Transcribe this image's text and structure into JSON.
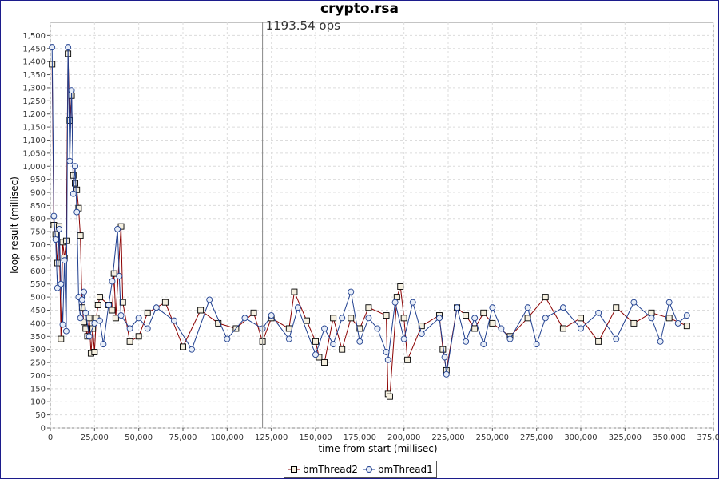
{
  "chart_data": {
    "type": "line",
    "title": "crypto.rsa",
    "annotation": "1193.54 ops",
    "annotation_x": 120000,
    "xlabel": "time from start (millisec)",
    "ylabel": "loop result (millisec)",
    "xlim": [
      0,
      375000
    ],
    "ylim": [
      0,
      1550
    ],
    "x_ticks": [
      "0",
      "25,000",
      "50,000",
      "75,000",
      "100,000",
      "125,000",
      "150,000",
      "175,000",
      "200,000",
      "225,000",
      "250,000",
      "275,000",
      "300,000",
      "325,000",
      "350,000",
      "375,000"
    ],
    "y_ticks": [
      "0",
      "50",
      "100",
      "150",
      "200",
      "250",
      "300",
      "350",
      "400",
      "450",
      "500",
      "550",
      "600",
      "650",
      "700",
      "750",
      "800",
      "850",
      "900",
      "950",
      "1,000",
      "1,050",
      "1,100",
      "1,150",
      "1,200",
      "1,250",
      "1,300",
      "1,350",
      "1,400",
      "1,450",
      "1,500"
    ],
    "grid": true,
    "legend_position": "bottom",
    "series": [
      {
        "name": "bmThread2",
        "marker": "square",
        "color": "#8b0000",
        "points": [
          [
            1000,
            1390
          ],
          [
            2000,
            775
          ],
          [
            3000,
            740
          ],
          [
            4000,
            630
          ],
          [
            5000,
            770
          ],
          [
            6000,
            340
          ],
          [
            7000,
            710
          ],
          [
            8000,
            650
          ],
          [
            9000,
            715
          ],
          [
            10000,
            1430
          ],
          [
            11000,
            1175
          ],
          [
            12000,
            1270
          ],
          [
            13000,
            965
          ],
          [
            14000,
            935
          ],
          [
            15000,
            910
          ],
          [
            16000,
            840
          ],
          [
            17000,
            735
          ],
          [
            18000,
            460
          ],
          [
            19000,
            405
          ],
          [
            20000,
            380
          ],
          [
            21000,
            350
          ],
          [
            22000,
            420
          ],
          [
            23000,
            285
          ],
          [
            24000,
            380
          ],
          [
            25000,
            290
          ],
          [
            26000,
            420
          ],
          [
            27000,
            470
          ],
          [
            28000,
            500
          ],
          [
            33000,
            470
          ],
          [
            35000,
            450
          ],
          [
            36000,
            590
          ],
          [
            37000,
            420
          ],
          [
            40000,
            770
          ],
          [
            41000,
            480
          ],
          [
            45000,
            330
          ],
          [
            50000,
            350
          ],
          [
            55000,
            440
          ],
          [
            65000,
            480
          ],
          [
            75000,
            310
          ],
          [
            85000,
            450
          ],
          [
            95000,
            400
          ],
          [
            105000,
            380
          ],
          [
            115000,
            440
          ],
          [
            120000,
            330
          ],
          [
            125000,
            420
          ],
          [
            135000,
            380
          ],
          [
            138000,
            520
          ],
          [
            145000,
            410
          ],
          [
            150000,
            330
          ],
          [
            152000,
            270
          ],
          [
            155000,
            250
          ],
          [
            160000,
            420
          ],
          [
            165000,
            300
          ],
          [
            170000,
            420
          ],
          [
            175000,
            380
          ],
          [
            180000,
            460
          ],
          [
            190000,
            430
          ],
          [
            191000,
            130
          ],
          [
            192000,
            120
          ],
          [
            196000,
            500
          ],
          [
            198000,
            540
          ],
          [
            200000,
            420
          ],
          [
            202000,
            260
          ],
          [
            210000,
            390
          ],
          [
            220000,
            430
          ],
          [
            222000,
            300
          ],
          [
            224000,
            220
          ],
          [
            230000,
            460
          ],
          [
            235000,
            430
          ],
          [
            240000,
            380
          ],
          [
            245000,
            440
          ],
          [
            250000,
            400
          ],
          [
            260000,
            350
          ],
          [
            270000,
            420
          ],
          [
            280000,
            500
          ],
          [
            290000,
            380
          ],
          [
            300000,
            420
          ],
          [
            310000,
            330
          ],
          [
            320000,
            460
          ],
          [
            330000,
            400
          ],
          [
            340000,
            440
          ],
          [
            350000,
            420
          ],
          [
            360000,
            390
          ]
        ]
      },
      {
        "name": "bmThread1",
        "marker": "circle",
        "color": "#1f3f8f",
        "points": [
          [
            1000,
            1455
          ],
          [
            2000,
            810
          ],
          [
            3000,
            720
          ],
          [
            4000,
            535
          ],
          [
            5000,
            760
          ],
          [
            6000,
            550
          ],
          [
            7000,
            395
          ],
          [
            8000,
            640
          ],
          [
            9000,
            370
          ],
          [
            10000,
            1455
          ],
          [
            11000,
            1020
          ],
          [
            12000,
            1290
          ],
          [
            13000,
            895
          ],
          [
            14000,
            1000
          ],
          [
            15000,
            825
          ],
          [
            16000,
            500
          ],
          [
            17000,
            420
          ],
          [
            18000,
            490
          ],
          [
            19000,
            520
          ],
          [
            20000,
            440
          ],
          [
            22000,
            350
          ],
          [
            25000,
            400
          ],
          [
            28000,
            410
          ],
          [
            30000,
            320
          ],
          [
            33000,
            470
          ],
          [
            35000,
            560
          ],
          [
            38000,
            760
          ],
          [
            39000,
            580
          ],
          [
            40000,
            430
          ],
          [
            45000,
            380
          ],
          [
            50000,
            420
          ],
          [
            55000,
            380
          ],
          [
            60000,
            460
          ],
          [
            70000,
            410
          ],
          [
            80000,
            300
          ],
          [
            90000,
            490
          ],
          [
            100000,
            340
          ],
          [
            110000,
            420
          ],
          [
            120000,
            380
          ],
          [
            125000,
            430
          ],
          [
            135000,
            340
          ],
          [
            140000,
            460
          ],
          [
            150000,
            280
          ],
          [
            155000,
            380
          ],
          [
            160000,
            320
          ],
          [
            165000,
            420
          ],
          [
            170000,
            520
          ],
          [
            175000,
            330
          ],
          [
            180000,
            420
          ],
          [
            185000,
            380
          ],
          [
            190000,
            290
          ],
          [
            191000,
            260
          ],
          [
            195000,
            480
          ],
          [
            200000,
            340
          ],
          [
            205000,
            480
          ],
          [
            210000,
            360
          ],
          [
            220000,
            420
          ],
          [
            223000,
            270
          ],
          [
            224000,
            205
          ],
          [
            230000,
            460
          ],
          [
            235000,
            330
          ],
          [
            240000,
            420
          ],
          [
            245000,
            320
          ],
          [
            250000,
            460
          ],
          [
            255000,
            380
          ],
          [
            260000,
            340
          ],
          [
            270000,
            460
          ],
          [
            275000,
            320
          ],
          [
            280000,
            420
          ],
          [
            290000,
            460
          ],
          [
            300000,
            380
          ],
          [
            310000,
            440
          ],
          [
            320000,
            340
          ],
          [
            330000,
            480
          ],
          [
            340000,
            420
          ],
          [
            345000,
            330
          ],
          [
            350000,
            480
          ],
          [
            355000,
            400
          ],
          [
            360000,
            430
          ]
        ]
      }
    ]
  }
}
